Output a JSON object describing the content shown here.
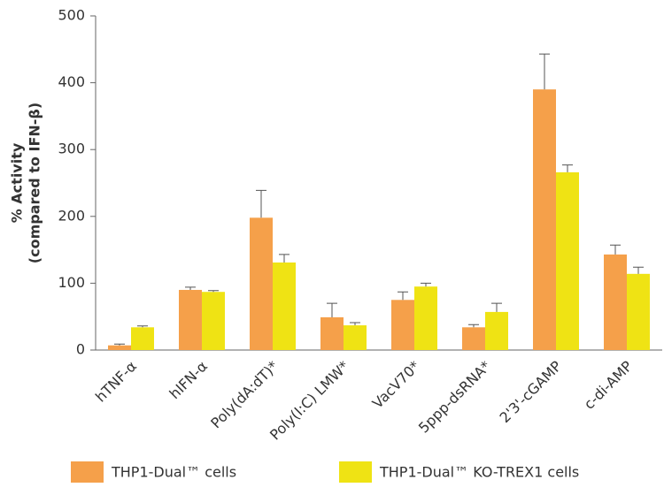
{
  "chart_data": {
    "type": "bar",
    "ylabel": [
      "% Activity",
      "(compared to IFN-β)"
    ],
    "categories": [
      "hTNF-α",
      "hIFN-α",
      "Poly(dA:dT)*",
      "Poly(I:C) LMW*",
      "VacV70*",
      "5ppp-dsRNA*",
      "2'3'-cGAMP",
      "c-di-AMP"
    ],
    "series": [
      {
        "name": "THP1-Dual™ cells",
        "color": "#f5a04a",
        "values": [
          7,
          90,
          198,
          49,
          75,
          34,
          390,
          143
        ],
        "errors": [
          2,
          4,
          41,
          21,
          12,
          4,
          53,
          14
        ]
      },
      {
        "name": "THP1-Dual™ KO-TREX1 cells",
        "color": "#efe314",
        "values": [
          34,
          87,
          131,
          37,
          95,
          57,
          266,
          114
        ],
        "errors": [
          2,
          2,
          12,
          4,
          5,
          13,
          11,
          10
        ]
      }
    ],
    "ylim": [
      0,
      500
    ],
    "yticks": [
      0,
      100,
      200,
      300,
      400,
      500
    ],
    "grid": false
  }
}
